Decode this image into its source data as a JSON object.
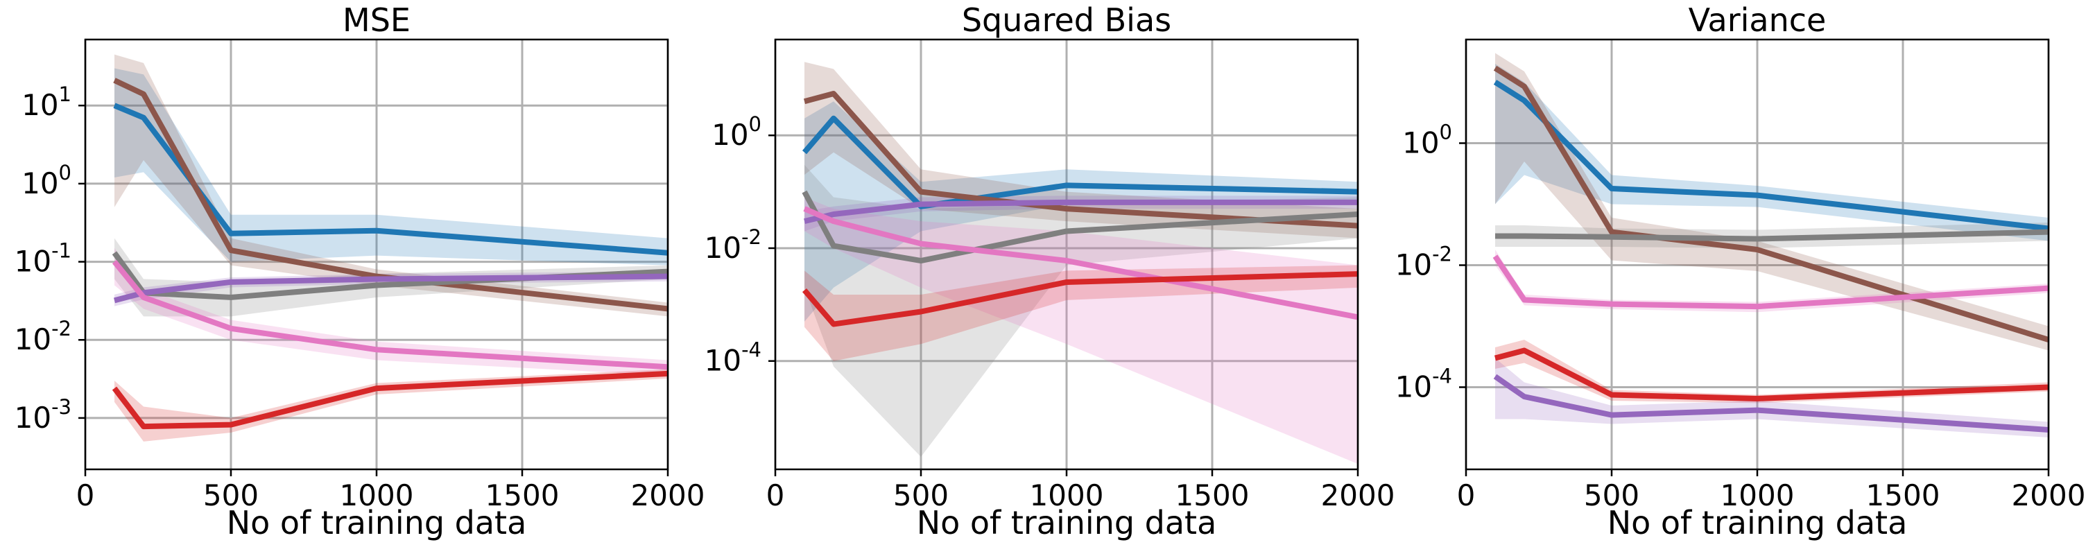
{
  "chart_data": [
    {
      "type": "line",
      "title": "MSE",
      "xlabel": "No of training data",
      "ylabel": "",
      "y_scale": "log",
      "grid": true,
      "xlim": [
        0,
        2000
      ],
      "ylim": [
        0.00022,
        70
      ],
      "x_ticks": [
        0,
        500,
        1000,
        1500,
        2000
      ],
      "y_ticks": [
        {
          "v": 0.001,
          "exp": "-3"
        },
        {
          "v": 0.01,
          "exp": "-2"
        },
        {
          "v": 0.1,
          "exp": "-1"
        },
        {
          "v": 1,
          "exp": "0"
        },
        {
          "v": 10,
          "exp": "1"
        }
      ],
      "series": [
        {
          "color": "#1f77b4",
          "x": [
            100,
            200,
            500,
            1000,
            2000
          ],
          "y": [
            10,
            7,
            0.23,
            0.25,
            0.13
          ],
          "lo": [
            1.2,
            1.4,
            0.1,
            0.12,
            0.09
          ],
          "hi": [
            30,
            25,
            0.4,
            0.4,
            0.2
          ]
        },
        {
          "color": "#8c564b",
          "x": [
            100,
            200,
            500,
            1000,
            2000
          ],
          "y": [
            21,
            14,
            0.14,
            0.065,
            0.025
          ],
          "lo": [
            0.5,
            2,
            0.09,
            0.05,
            0.02
          ],
          "hi": [
            45,
            35,
            0.2,
            0.08,
            0.03
          ]
        },
        {
          "color": "#7f7f7f",
          "x": [
            100,
            200,
            500,
            1000,
            2000
          ],
          "y": [
            0.13,
            0.04,
            0.035,
            0.05,
            0.075
          ],
          "lo": [
            0.06,
            0.02,
            0.02,
            0.035,
            0.06
          ],
          "hi": [
            0.2,
            0.06,
            0.055,
            0.07,
            0.09
          ]
        },
        {
          "color": "#9467bd",
          "x": [
            100,
            200,
            500,
            1000,
            2000
          ],
          "y": [
            0.032,
            0.04,
            0.055,
            0.06,
            0.065
          ],
          "lo": [
            0.027,
            0.033,
            0.047,
            0.052,
            0.056
          ],
          "hi": [
            0.038,
            0.047,
            0.063,
            0.07,
            0.075
          ]
        },
        {
          "color": "#e377c2",
          "x": [
            100,
            200,
            500,
            1000,
            2000
          ],
          "y": [
            0.1,
            0.035,
            0.014,
            0.0075,
            0.0045
          ],
          "lo": [
            0.05,
            0.025,
            0.01,
            0.0055,
            0.0035
          ],
          "hi": [
            0.15,
            0.045,
            0.018,
            0.0095,
            0.0055
          ]
        },
        {
          "color": "#d62728",
          "x": [
            100,
            200,
            500,
            1000,
            2000
          ],
          "y": [
            0.0024,
            0.00078,
            0.00082,
            0.0024,
            0.0037
          ],
          "lo": [
            0.0016,
            0.0005,
            0.00065,
            0.002,
            0.0032
          ],
          "hi": [
            0.003,
            0.0014,
            0.001,
            0.0028,
            0.0042
          ]
        }
      ]
    },
    {
      "type": "line",
      "title": "Squared Bias",
      "xlabel": "No of training data",
      "ylabel": "",
      "y_scale": "log",
      "grid": true,
      "xlim": [
        0,
        2000
      ],
      "ylim": [
        1.2e-06,
        50
      ],
      "x_ticks": [
        0,
        500,
        1000,
        1500,
        2000
      ],
      "y_ticks": [
        {
          "v": 0.0001,
          "exp": "-4"
        },
        {
          "v": 0.01,
          "exp": "-2"
        },
        {
          "v": 1,
          "exp": "0"
        }
      ],
      "series": [
        {
          "color": "#1f77b4",
          "x": [
            100,
            200,
            500,
            1000,
            2000
          ],
          "y": [
            0.5,
            2,
            0.055,
            0.13,
            0.1
          ],
          "lo": [
            0.0005,
            0.002,
            0.02,
            0.06,
            0.06
          ],
          "hi": [
            2,
            4,
            0.15,
            0.25,
            0.15
          ]
        },
        {
          "color": "#8c564b",
          "x": [
            100,
            200,
            500,
            1000,
            2000
          ],
          "y": [
            4,
            5.5,
            0.1,
            0.05,
            0.025
          ],
          "lo": [
            0.2,
            0.5,
            0.05,
            0.03,
            0.015
          ],
          "hi": [
            20,
            15,
            0.25,
            0.1,
            0.05
          ]
        },
        {
          "color": "#7f7f7f",
          "x": [
            100,
            200,
            500,
            1000,
            2000
          ],
          "y": [
            0.1,
            0.011,
            0.006,
            0.02,
            0.04
          ],
          "lo": [
            0.002,
            8e-05,
            2e-06,
            0.005,
            0.015
          ],
          "hi": [
            0.3,
            0.08,
            0.05,
            0.06,
            0.08
          ]
        },
        {
          "color": "#9467bd",
          "x": [
            100,
            200,
            500,
            1000,
            2000
          ],
          "y": [
            0.03,
            0.04,
            0.06,
            0.065,
            0.065
          ],
          "lo": [
            0.02,
            0.03,
            0.045,
            0.05,
            0.05
          ],
          "hi": [
            0.045,
            0.055,
            0.08,
            0.085,
            0.085
          ]
        },
        {
          "color": "#e377c2",
          "x": [
            100,
            200,
            500,
            1000,
            2000
          ],
          "y": [
            0.05,
            0.03,
            0.012,
            0.006,
            0.0006
          ],
          "lo": [
            0.02,
            0.01,
            0.002,
            0.0002,
            1.5e-06
          ],
          "hi": [
            0.08,
            0.05,
            0.03,
            0.02,
            0.005
          ]
        },
        {
          "color": "#d62728",
          "x": [
            100,
            200,
            500,
            1000,
            2000
          ],
          "y": [
            0.0018,
            0.00045,
            0.00075,
            0.0025,
            0.0035
          ],
          "lo": [
            0.0004,
            0.0001,
            0.0002,
            0.0012,
            0.002
          ],
          "hi": [
            0.004,
            0.0015,
            0.0015,
            0.004,
            0.005
          ]
        }
      ]
    },
    {
      "type": "line",
      "title": "Variance",
      "xlabel": "No of training data",
      "ylabel": "",
      "y_scale": "log",
      "grid": true,
      "xlim": [
        0,
        2000
      ],
      "ylim": [
        4.5e-06,
        50
      ],
      "x_ticks": [
        0,
        500,
        1000,
        1500,
        2000
      ],
      "y_ticks": [
        {
          "v": 0.0001,
          "exp": "-4"
        },
        {
          "v": 0.01,
          "exp": "-2"
        },
        {
          "v": 1,
          "exp": "0"
        }
      ],
      "series": [
        {
          "color": "#1f77b4",
          "x": [
            100,
            200,
            500,
            1000,
            2000
          ],
          "y": [
            10,
            5,
            0.18,
            0.14,
            0.04
          ],
          "lo": [
            0.1,
            0.3,
            0.1,
            0.09,
            0.025
          ],
          "hi": [
            20,
            10,
            0.3,
            0.2,
            0.06
          ]
        },
        {
          "color": "#8c564b",
          "x": [
            100,
            200,
            500,
            1000,
            2000
          ],
          "y": [
            17,
            8.5,
            0.035,
            0.018,
            0.0006
          ],
          "lo": [
            0.1,
            0.5,
            0.012,
            0.008,
            0.0004
          ],
          "hi": [
            30,
            15,
            0.06,
            0.025,
            0.001
          ]
        },
        {
          "color": "#7f7f7f",
          "x": [
            100,
            200,
            500,
            1000,
            2000
          ],
          "y": [
            0.03,
            0.03,
            0.029,
            0.027,
            0.035
          ],
          "lo": [
            0.02,
            0.02,
            0.02,
            0.019,
            0.025
          ],
          "hi": [
            0.045,
            0.045,
            0.04,
            0.038,
            0.05
          ]
        },
        {
          "color": "#e377c2",
          "x": [
            100,
            200,
            500,
            1000,
            2000
          ],
          "y": [
            0.014,
            0.0027,
            0.0023,
            0.0021,
            0.0042
          ],
          "lo": [
            0.01,
            0.0022,
            0.0019,
            0.0017,
            0.0035
          ],
          "hi": [
            0.018,
            0.0033,
            0.0027,
            0.0025,
            0.005
          ]
        },
        {
          "color": "#d62728",
          "x": [
            100,
            200,
            500,
            1000,
            2000
          ],
          "y": [
            0.0003,
            0.0004,
            7.5e-05,
            6.5e-05,
            0.0001
          ],
          "lo": [
            0.0002,
            0.00025,
            6e-05,
            5.5e-05,
            8.5e-05
          ],
          "hi": [
            0.00045,
            0.0006,
            9e-05,
            7.5e-05,
            0.00012
          ]
        },
        {
          "color": "#9467bd",
          "x": [
            100,
            200,
            500,
            1000,
            2000
          ],
          "y": [
            0.00015,
            7e-05,
            3.5e-05,
            4.2e-05,
            2e-05
          ],
          "lo": [
            3e-05,
            3e-05,
            2.5e-05,
            3e-05,
            1.5e-05
          ],
          "hi": [
            0.0003,
            0.00012,
            5e-05,
            6e-05,
            2.7e-05
          ]
        }
      ]
    }
  ]
}
